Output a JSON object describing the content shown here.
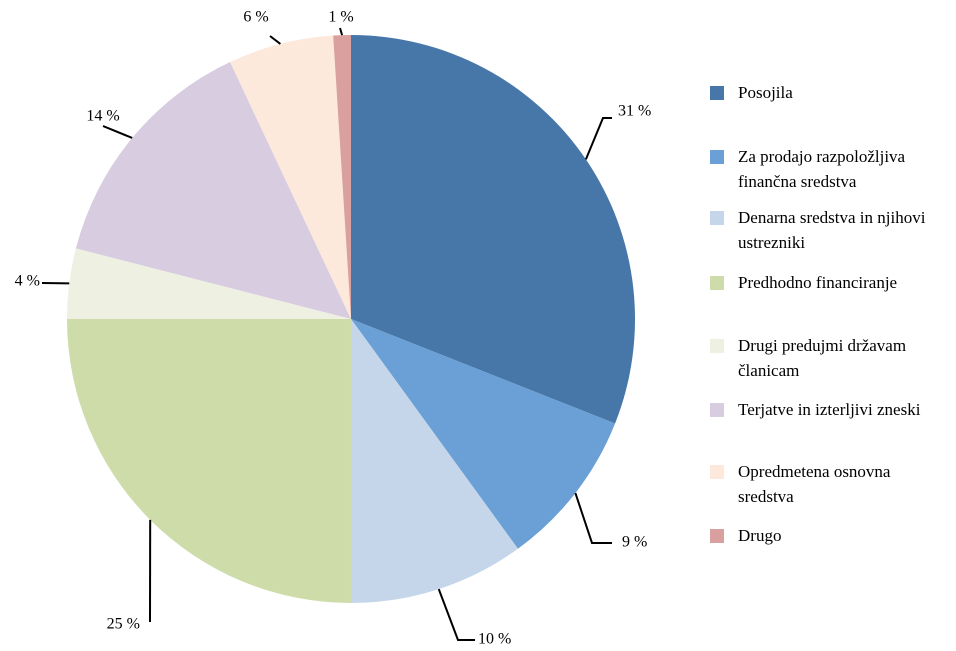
{
  "chart_data": {
    "type": "pie",
    "categories": [
      "Posojila",
      "Za prodajo razpoložljiva finančna sredstva",
      "Denarna sredstva in njihovi ustrezniki",
      "Predhodno financiranje",
      "Drugi predujmi državam članicam",
      "Terjatve in izterljivi zneski",
      "Opredmetena osnovna sredstva",
      "Drugo"
    ],
    "values": [
      31,
      9,
      10,
      25,
      4,
      14,
      6,
      1
    ],
    "value_labels": [
      "31 %",
      "9 %",
      "10 %",
      "25 %",
      "4 %",
      "14 %",
      "6 %",
      "1 %"
    ],
    "colors": [
      "#4677a8",
      "#6aa0d6",
      "#c5d6ea",
      "#cedcaa",
      "#eef1e2",
      "#d8cce0",
      "#fde9dc",
      "#d9a09f"
    ],
    "legend": "right"
  }
}
